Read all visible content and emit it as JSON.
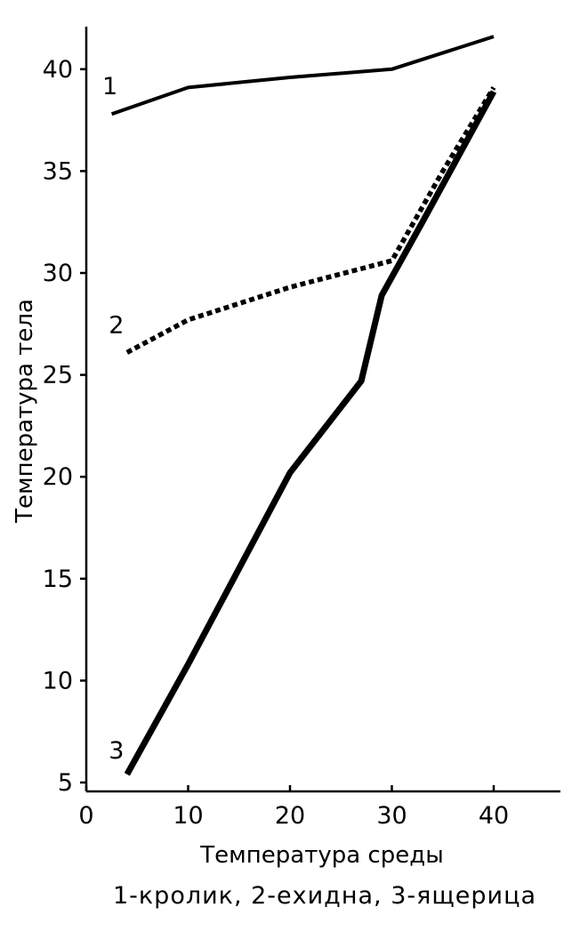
{
  "chart_data": {
    "type": "line",
    "xlabel": "Температура среды",
    "ylabel": "Температура тела",
    "caption": "1-кролик,  2-ехидна, 3-ящерица",
    "xlim": [
      0,
      47
    ],
    "ylim": [
      5,
      43
    ],
    "x_ticks": [
      0,
      10,
      20,
      30,
      40
    ],
    "y_ticks": [
      5,
      10,
      15,
      20,
      25,
      30,
      35,
      40
    ],
    "grid": false,
    "series": [
      {
        "name": "1",
        "style": "solid",
        "color": "#000000",
        "points": [
          [
            2.5,
            37.8
          ],
          [
            10,
            39.1
          ],
          [
            20,
            39.6
          ],
          [
            30,
            40.0
          ],
          [
            40,
            41.6
          ]
        ]
      },
      {
        "name": "2",
        "style": "dotted",
        "color": "#000000",
        "points": [
          [
            4,
            26.1
          ],
          [
            10,
            27.7
          ],
          [
            20,
            29.3
          ],
          [
            30,
            30.6
          ],
          [
            35,
            35.0
          ],
          [
            40,
            39.1
          ]
        ]
      },
      {
        "name": "3",
        "style": "bold",
        "color": "#000000",
        "points": [
          [
            4,
            5.4
          ],
          [
            10,
            10.8
          ],
          [
            20,
            20.2
          ],
          [
            27,
            24.7
          ],
          [
            29,
            28.9
          ],
          [
            33,
            32.5
          ],
          [
            40,
            38.9
          ]
        ]
      }
    ]
  }
}
